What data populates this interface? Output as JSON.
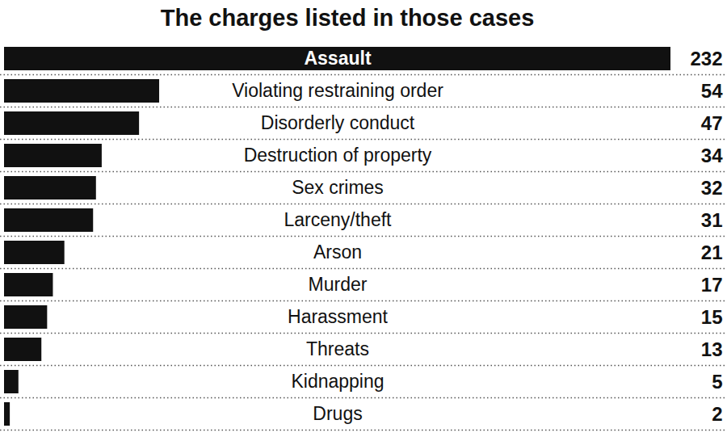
{
  "chart_data": {
    "type": "bar",
    "title": "The charges listed in those cases",
    "orientation": "horizontal",
    "categories": [
      "Assault",
      "Violating restraining order",
      "Disorderly conduct",
      "Destruction of property",
      "Sex crimes",
      "Larceny/theft",
      "Arson",
      "Murder",
      "Harassment",
      "Threats",
      "Kidnapping",
      "Drugs"
    ],
    "values": [
      232,
      54,
      47,
      34,
      32,
      31,
      21,
      17,
      15,
      13,
      5,
      2
    ],
    "color": "#111111",
    "xlim": [
      0,
      232
    ],
    "data_labels": true,
    "tick_labels": false,
    "grid": false
  }
}
